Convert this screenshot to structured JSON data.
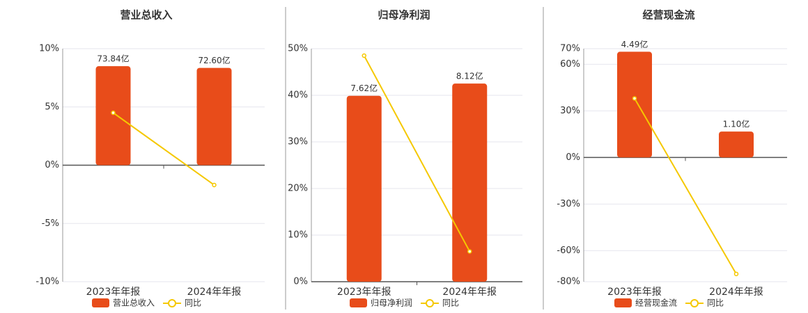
{
  "chart_data": [
    {
      "type": "bar-line",
      "title": "营业总收入",
      "categories": [
        "2023年年报",
        "2024年年报"
      ],
      "series": [
        {
          "name": "营业总收入",
          "color": "#e84c1a",
          "axis": "y2",
          "values": [
            73.84,
            72.6
          ],
          "value_labels": [
            "73.84亿",
            "72.60亿"
          ]
        },
        {
          "name": "同比",
          "color": "#f5c800",
          "values": [
            4.5,
            -1.7
          ]
        }
      ],
      "ylim": [
        -10,
        10
      ],
      "yticks": [
        {
          "value": -10,
          "label": "-10%"
        },
        {
          "value": -5,
          "label": "-5%"
        },
        {
          "value": 0,
          "label": "0%"
        },
        {
          "value": 5,
          "label": "5%"
        },
        {
          "value": 10,
          "label": "10%"
        }
      ],
      "y2lim": [
        -86.9,
        86.9
      ],
      "grid": true
    },
    {
      "type": "bar-line",
      "title": "归母净利润",
      "categories": [
        "2023年年报",
        "2024年年报"
      ],
      "series": [
        {
          "name": "归母净利润",
          "color": "#e84c1a",
          "axis": "y2",
          "values": [
            7.62,
            8.12
          ],
          "value_labels": [
            "7.62亿",
            "8.12亿"
          ]
        },
        {
          "name": "同比",
          "color": "#f5c800",
          "values": [
            48.5,
            6.5
          ]
        }
      ],
      "ylim": [
        0,
        50
      ],
      "yticks": [
        {
          "value": 0,
          "label": "0%"
        },
        {
          "value": 10,
          "label": "10%"
        },
        {
          "value": 20,
          "label": "20%"
        },
        {
          "value": 30,
          "label": "30%"
        },
        {
          "value": 40,
          "label": "40%"
        },
        {
          "value": 50,
          "label": "50%"
        }
      ],
      "y2lim": [
        0,
        9.55
      ],
      "grid": true
    },
    {
      "type": "bar-line",
      "title": "经营现金流",
      "categories": [
        "2023年年报",
        "2024年年报"
      ],
      "series": [
        {
          "name": "经营现金流",
          "color": "#e84c1a",
          "axis": "y2",
          "values": [
            4.49,
            1.1
          ],
          "value_labels": [
            "4.49亿",
            "1.10亿"
          ]
        },
        {
          "name": "同比",
          "color": "#f5c800",
          "values": [
            38,
            -75
          ]
        }
      ],
      "ylim": [
        -80,
        70
      ],
      "yticks": [
        {
          "value": -80,
          "label": "-80%"
        },
        {
          "value": -60,
          "label": "-60%"
        },
        {
          "value": -30,
          "label": "-30%"
        },
        {
          "value": 0,
          "label": "0%"
        },
        {
          "value": 30,
          "label": "30%"
        },
        {
          "value": 60,
          "label": "60%"
        },
        {
          "value": 70,
          "label": "70%"
        }
      ],
      "y2lim": [
        -5.28,
        4.62
      ],
      "grid": true
    }
  ]
}
